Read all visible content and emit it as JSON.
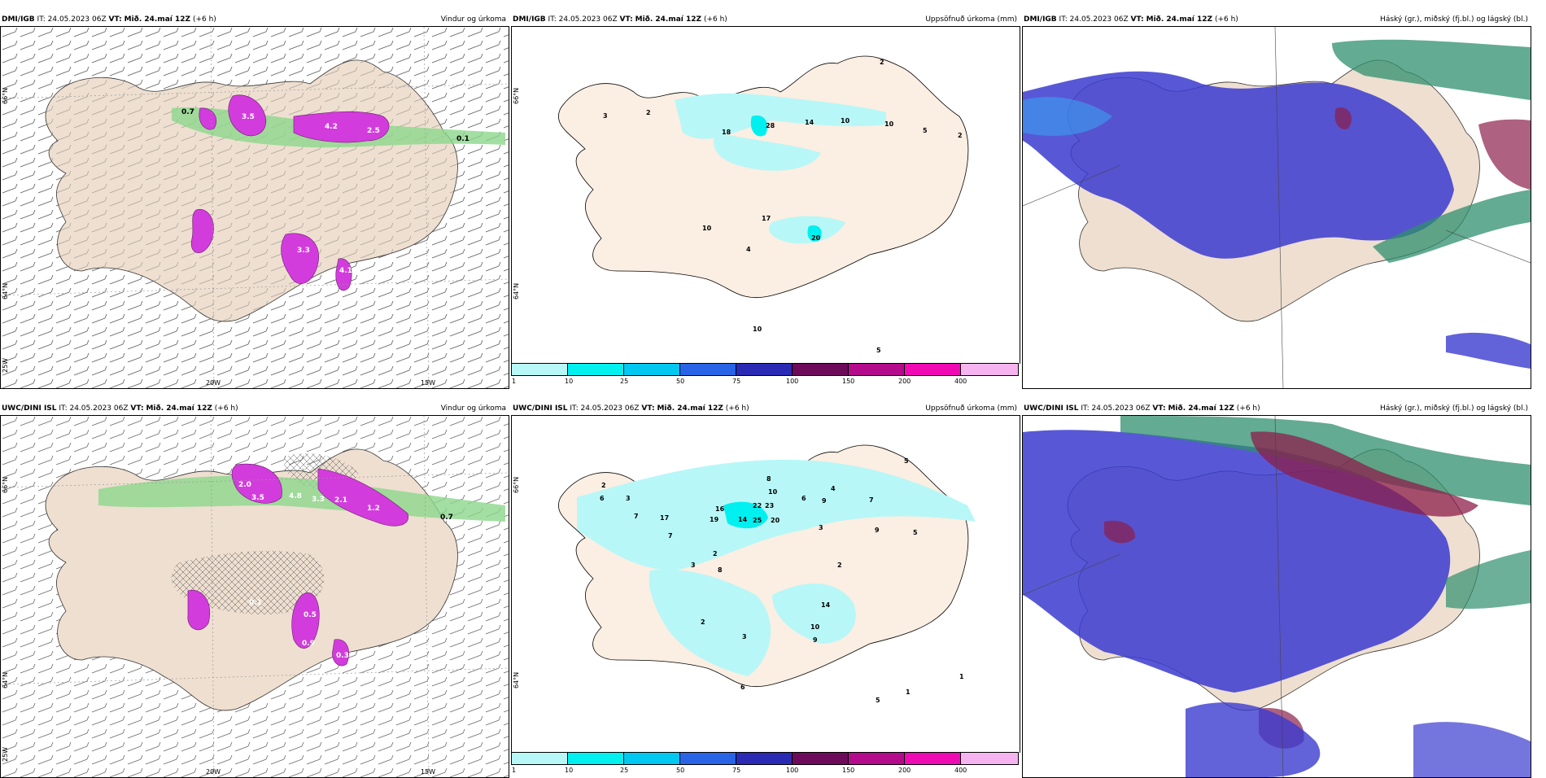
{
  "panels": [
    {
      "id": "p1",
      "model": "DMI/IGB",
      "it_label": "IT:",
      "it_time": "24.05.2023 06Z",
      "vt_label": "VT:",
      "vt_time": "Mið. 24.maí 12Z",
      "lead": "(+6 h)",
      "title_right": "Vindur og úrkoma",
      "lat_labels": [
        "66°N",
        "64°N"
      ],
      "lon_labels": [
        "20W",
        "15W",
        "25W"
      ],
      "values": [
        "0.7",
        "3.5",
        "4.2",
        "2.5",
        "3.3",
        "4.1",
        "0.1"
      ]
    },
    {
      "id": "p2",
      "model": "DMI/IGB",
      "it_label": "IT:",
      "it_time": "24.05.2023 06Z",
      "vt_label": "VT:",
      "vt_time": "Mið. 24.maí 12Z",
      "lead": "(+6 h)",
      "title_right": "Uppsöfnuð úrkoma (mm)",
      "lat_labels": [
        "66°N",
        "64°N"
      ],
      "values": [
        "2",
        "3",
        "2",
        "18",
        "28",
        "14",
        "10",
        "10",
        "5",
        "2",
        "10",
        "17",
        "20",
        "4",
        "10",
        "5"
      ]
    },
    {
      "id": "p3",
      "model": "DMI/IGB",
      "it_label": "IT:",
      "it_time": "24.05.2023 06Z",
      "vt_label": "VT:",
      "vt_time": "Mið. 24.maí 12Z",
      "lead": "(+6 h)",
      "title_right": "Háský (gr.), miðský (fj.bl.) og lágský (bl.)"
    },
    {
      "id": "p4",
      "model": "UWC/DINI ISL",
      "it_label": "IT:",
      "it_time": "24.05.2023 06Z",
      "vt_label": "VT:",
      "vt_time": "Mið. 24.maí 12Z",
      "lead": "(+6 h)",
      "title_right": "Vindur og úrkoma",
      "lat_labels": [
        "66°N",
        "64°N"
      ],
      "lon_labels": [
        "20W",
        "15W",
        "25W"
      ],
      "values": [
        "2.0",
        "3.5",
        "4.8",
        "3.3",
        "2.1",
        "1.2",
        "0.7",
        "0.5",
        "0.9",
        "0.3",
        "0.1"
      ]
    },
    {
      "id": "p5",
      "model": "UWC/DINI ISL",
      "it_label": "IT:",
      "it_time": "24.05.2023 06Z",
      "vt_label": "VT:",
      "vt_time": "Mið. 24.maí 12Z",
      "lead": "(+6 h)",
      "title_right": "Uppsöfnuð úrkoma (mm)",
      "lat_labels": [
        "66°N",
        "64°N"
      ],
      "values": [
        "2",
        "3",
        "6",
        "7",
        "17",
        "16",
        "19",
        "14",
        "25",
        "22",
        "23",
        "20",
        "8",
        "10",
        "6",
        "9",
        "4",
        "7",
        "5",
        "3",
        "9",
        "5",
        "2",
        "1",
        "7",
        "14",
        "10",
        "9",
        "2",
        "3",
        "8",
        "6",
        "5",
        "1",
        "2",
        "3"
      ]
    },
    {
      "id": "p6",
      "model": "UWC/DINI ISL",
      "it_label": "IT:",
      "it_time": "24.05.2023 06Z",
      "vt_label": "VT:",
      "vt_time": "Mið. 24.maí 12Z",
      "lead": "(+6 h)",
      "title_right": "Háský (gr.), miðský (fj.bl.) og lágský (bl.)"
    }
  ],
  "colorbar": {
    "ticks": [
      "1",
      "10",
      "25",
      "50",
      "75",
      "100",
      "150",
      "200",
      "400"
    ],
    "colors": [
      "#b8f7f7",
      "#00f0f0",
      "#00c8f0",
      "#2a64e6",
      "#2a2ab4",
      "#6e0a5a",
      "#b40a8c",
      "#f00ab4",
      "#f5b4f0"
    ]
  },
  "map_colors": {
    "land": "#eedfd0",
    "land_pcp": "#fbeee2",
    "precip": "#b8f7f7",
    "precip_dark": "#00f0f0",
    "magenta": "#d23cdc",
    "green": "#8cd78c",
    "cloud_low": "#3b3bd0",
    "cloud_mid": "#3aa0f0",
    "cloud_high": "#2f8f6e",
    "cloud_dark": "#8c1e4a"
  }
}
